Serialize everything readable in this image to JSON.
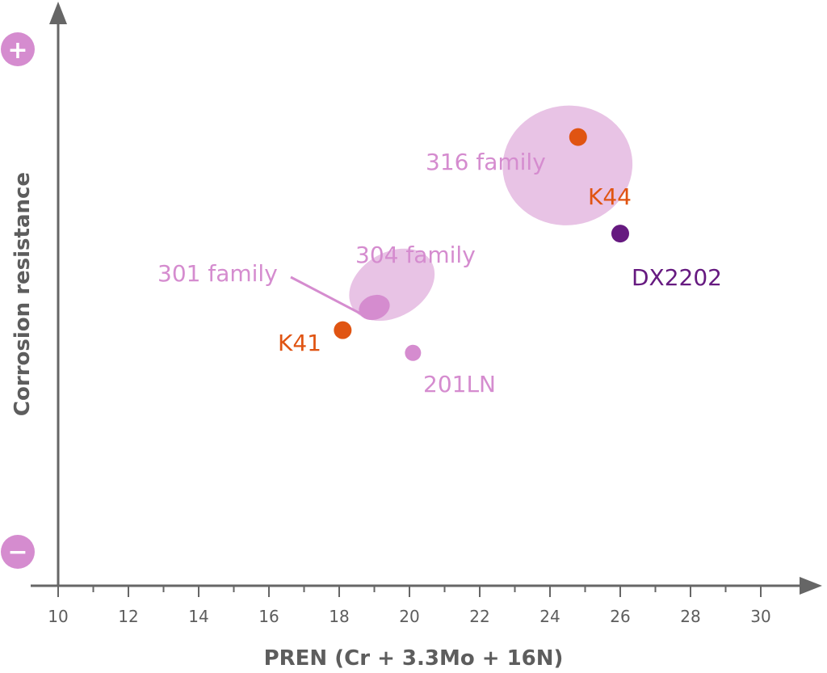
{
  "chart_data": {
    "type": "scatter",
    "title": "",
    "xlabel": "PREN (Cr + 3.3Mo + 16N)",
    "ylabel": "Corrosion resistance",
    "xlim": [
      10,
      31
    ],
    "x_ticks": [
      "10",
      "12",
      "14",
      "16",
      "18",
      "20",
      "22",
      "24",
      "26",
      "28",
      "30"
    ],
    "y_scale_markers": {
      "top": "+",
      "bottom": "−"
    },
    "grid": false,
    "points": [
      {
        "name": "K41",
        "x": 18.1,
        "relative_resistance": 0.45,
        "color": "#e05412"
      },
      {
        "name": "K44",
        "x": 24.8,
        "relative_resistance": 0.79,
        "color": "#e05412"
      },
      {
        "name": "DX2202",
        "x": 26.0,
        "relative_resistance": 0.62,
        "color": "#661a80"
      },
      {
        "name": "201LN",
        "x": 20.1,
        "relative_resistance": 0.41,
        "color": "#d58ccf"
      }
    ],
    "regions": [
      {
        "name": "316 family",
        "x_center": 24.5,
        "x_half_width": 1.85,
        "relative_resistance": 0.74,
        "color": "#e8c3e5"
      },
      {
        "name": "304 family",
        "x_center": 19.5,
        "x_half_width": 1.3,
        "relative_resistance": 0.53,
        "color": "#e8c3e5"
      },
      {
        "name": "301 family",
        "x_center": 19.0,
        "x_half_width": 0.45,
        "relative_resistance": 0.49,
        "color": "#d58ccf"
      }
    ],
    "colors": {
      "axis": "#666666",
      "marker": "#d58ccf"
    }
  }
}
